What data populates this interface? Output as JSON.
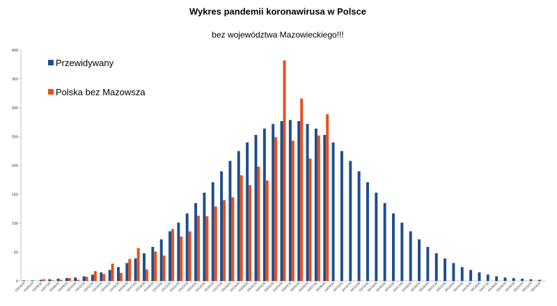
{
  "chart_data": {
    "type": "bar",
    "title": "Wykres pandemii koronawirusa w Polsce",
    "subtitle": "bez województwa Mazowieckiego!!!",
    "xlabel": "",
    "ylabel": "",
    "ylim": [
      0,
      400
    ],
    "yticks": [
      0,
      50,
      100,
      150,
      200,
      250,
      300,
      350,
      400
    ],
    "grid": false,
    "legend_position": "top-left",
    "categories": [
      "03/04/20",
      "03/05/20",
      "03/06/20",
      "03/07/20",
      "03/08/20",
      "03/09/20",
      "03/10/20",
      "03/11/20",
      "03/12/20",
      "03/13/20",
      "03/14/20",
      "03/15/20",
      "03/16/20",
      "03/17/20",
      "03/18/20",
      "03/19/20",
      "03/20/20",
      "03/21/20",
      "03/22/20",
      "03/23/20",
      "03/24/20",
      "03/25/20",
      "03/26/20",
      "03/27/20",
      "03/28/20",
      "03/29/20",
      "03/30/20",
      "03/31/20",
      "04/01/20",
      "04/02/20",
      "04/03/20",
      "04/04/20",
      "04/05/20",
      "04/06/20",
      "04/07/20",
      "04/08/20",
      "04/09/20",
      "04/10/20",
      "04/11/20",
      "04/12/20",
      "04/13/20",
      "04/14/20",
      "04/15/20",
      "04/16/20",
      "04/17/20",
      "04/18/20",
      "04/19/20",
      "04/20/20",
      "04/21/20",
      "04/22/20",
      "04/23/20",
      "04/24/20",
      "04/25/20",
      "04/26/20",
      "04/27/20",
      "04/28/20",
      "04/29/20",
      "04/30/20",
      "05/01/20",
      "05/02/20",
      "05/03/20"
    ],
    "series": [
      {
        "name": "Przewidywany",
        "color": "#1f4e8c",
        "values": [
          1,
          1,
          2,
          3,
          4,
          5,
          6,
          8,
          11,
          15,
          19,
          24,
          31,
          39,
          48,
          59,
          72,
          86,
          101,
          117,
          135,
          153,
          171,
          190,
          208,
          225,
          240,
          253,
          264,
          272,
          277,
          279,
          277,
          272,
          264,
          253,
          240,
          225,
          208,
          190,
          171,
          153,
          135,
          117,
          101,
          86,
          72,
          59,
          48,
          39,
          31,
          24,
          19,
          15,
          11,
          8,
          6,
          5,
          4,
          3,
          2
        ]
      },
      {
        "name": "Polska bez Mazowsza",
        "color": "#e8501e",
        "values": [
          0,
          0,
          3,
          1,
          2,
          5,
          2,
          7,
          17,
          12,
          30,
          14,
          38,
          57,
          20,
          51,
          44,
          90,
          77,
          86,
          113,
          112,
          129,
          140,
          145,
          183,
          166,
          198,
          174,
          249,
          382,
          243,
          316,
          212,
          252,
          289,
          null,
          null,
          null,
          null,
          null,
          null,
          null,
          null,
          null,
          null,
          null,
          null,
          null,
          null,
          null,
          null,
          null,
          null,
          null,
          null,
          null,
          null,
          null,
          null,
          null
        ]
      }
    ]
  }
}
